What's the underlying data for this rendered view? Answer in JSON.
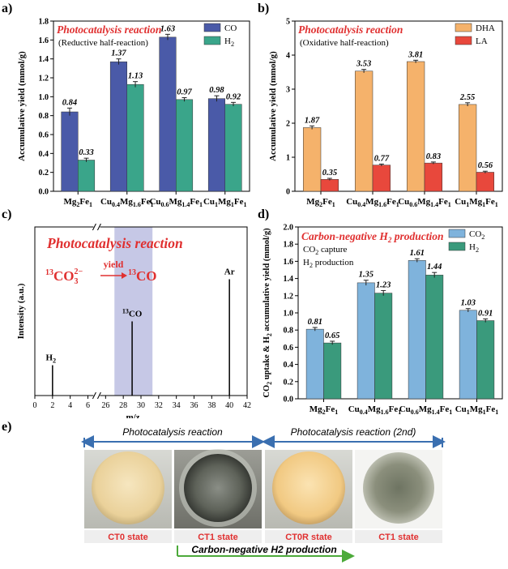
{
  "panels": {
    "a": {
      "label": "a)"
    },
    "b": {
      "label": "b)"
    },
    "c": {
      "label": "c)"
    },
    "d": {
      "label": "d)"
    },
    "e": {
      "label": "e)"
    }
  },
  "chart_data": [
    {
      "type": "bar",
      "title": "Photocatalysis reaction",
      "subtitle": "(Reductive half-reaction)",
      "ylabel": "Accumulative yield (mmol/g)",
      "ylim": [
        0,
        1.8
      ],
      "yticks": [
        0,
        0.2,
        0.4,
        0.6,
        0.8,
        1.0,
        1.2,
        1.4,
        1.6,
        1.8
      ],
      "categories": [
        {
          "base": "Mg",
          "s1": "2",
          "mid": "Fe",
          "s2": "1"
        },
        {
          "base": "Cu",
          "s1": "0.4",
          "mid": "Mg",
          "s2": "1.6",
          "tail": "Fe",
          "s3": "1"
        },
        {
          "base": "Cu",
          "s1": "0.6",
          "mid": "Mg",
          "s2": "1.4",
          "tail": "Fe",
          "s3": "1"
        },
        {
          "base": "Cu",
          "s1": "1",
          "mid": "Mg",
          "s2": "1",
          "tail": "Fe",
          "s3": "1"
        }
      ],
      "series": [
        {
          "name": "CO",
          "values": [
            0.84,
            1.37,
            1.63,
            0.98
          ],
          "errors": [
            0.04,
            0.03,
            0.03,
            0.03
          ],
          "color": "#4a5aa8"
        },
        {
          "name": "H2",
          "values": [
            0.33,
            1.13,
            0.97,
            0.92
          ],
          "errors": [
            0.02,
            0.03,
            0.02,
            0.02
          ],
          "color": "#3aa58a"
        }
      ],
      "legend": "top-right"
    },
    {
      "type": "bar",
      "title": "Photocatalysis reaction",
      "subtitle": "(Oxidative half-reaction)",
      "ylabel": "Accumulative yield (mmol/g)",
      "ylim": [
        0,
        5
      ],
      "yticks": [
        0,
        1,
        2,
        3,
        4,
        5
      ],
      "categories": [
        {
          "base": "Mg",
          "s1": "2",
          "mid": "Fe",
          "s2": "1"
        },
        {
          "base": "Cu",
          "s1": "0.4",
          "mid": "Mg",
          "s2": "1.6",
          "tail": "Fe",
          "s3": "1"
        },
        {
          "base": "Cu",
          "s1": "0.6",
          "mid": "Mg",
          "s2": "1.4",
          "tail": "Fe",
          "s3": "1"
        },
        {
          "base": "Cu",
          "s1": "1",
          "mid": "Mg",
          "s2": "1",
          "tail": "Fe",
          "s3": "1"
        }
      ],
      "series": [
        {
          "name": "DHA",
          "values": [
            1.87,
            3.53,
            3.81,
            2.55
          ],
          "errors": [
            0.05,
            0.05,
            0.04,
            0.05
          ],
          "color": "#f5b26b"
        },
        {
          "name": "LA",
          "values": [
            0.35,
            0.77,
            0.83,
            0.56
          ],
          "errors": [
            0.03,
            0.03,
            0.03,
            0.03
          ],
          "color": "#e8483c"
        }
      ],
      "legend": "top-right"
    },
    {
      "type": "line",
      "title": "Photocatalysis reaction",
      "annotation": {
        "left": "13CO32−",
        "over": "yield",
        "right": "13CO"
      },
      "ylabel": "Intensity (a.u.)",
      "xlabel": "m/z",
      "xticks": [
        0,
        2,
        4,
        6,
        26,
        28,
        30,
        32,
        34,
        36,
        38,
        40,
        42
      ],
      "axis_break": [
        6,
        26
      ],
      "highlight_range": [
        27,
        31.3
      ],
      "peaks": [
        {
          "x": 2,
          "y": 0.18,
          "label": "H2"
        },
        {
          "x": 29,
          "y": 0.44,
          "label": "13CO"
        },
        {
          "x": 40,
          "y": 0.69,
          "label": "Ar"
        }
      ]
    },
    {
      "type": "bar",
      "title": "Carbon-negative H2 production",
      "subtitle_lines": [
        "CO2 capture",
        "H2 production"
      ],
      "ylabel": "CO2 uptake & H2 accumulative yield (mmol/g)",
      "ylim": [
        0,
        2.0
      ],
      "yticks": [
        0,
        0.2,
        0.4,
        0.6,
        0.8,
        1.0,
        1.2,
        1.4,
        1.6,
        1.8,
        2.0
      ],
      "categories": [
        {
          "base": "Mg",
          "s1": "2",
          "mid": "Fe",
          "s2": "1"
        },
        {
          "base": "Cu",
          "s1": "0.4",
          "mid": "Mg",
          "s2": "1.6",
          "tail": "Fe",
          "s3": "1"
        },
        {
          "base": "Cu",
          "s1": "0.6",
          "mid": "Mg",
          "s2": "1.4",
          "tail": "Fe",
          "s3": "1"
        },
        {
          "base": "Cu",
          "s1": "1",
          "mid": "Mg",
          "s2": "1",
          "tail": "Fe",
          "s3": "1"
        }
      ],
      "series": [
        {
          "name": "CO2",
          "values": [
            0.81,
            1.35,
            1.61,
            1.03
          ],
          "errors": [
            0.02,
            0.03,
            0.02,
            0.02
          ],
          "color": "#7fb3dc"
        },
        {
          "name": "H2",
          "values": [
            0.65,
            1.23,
            1.44,
            0.91
          ],
          "errors": [
            0.02,
            0.03,
            0.03,
            0.02
          ],
          "color": "#3a9a7c"
        }
      ],
      "legend": "top-right"
    }
  ],
  "panel_e": {
    "bracket_top_1": "Photocatalysis reaction",
    "bracket_top_2": "Photocatalysis reaction (2nd)",
    "bracket_bottom": "Carbon-negative H2 production",
    "states": [
      "CT0 state",
      "CT1 state",
      "CT0R state",
      "CT1 state"
    ],
    "colors": {
      "bracket": "#3a6fb0",
      "bottom_bracket": "#4caa3a",
      "state_text": "#e03030",
      "state_bg": "#f0f0f0"
    }
  }
}
